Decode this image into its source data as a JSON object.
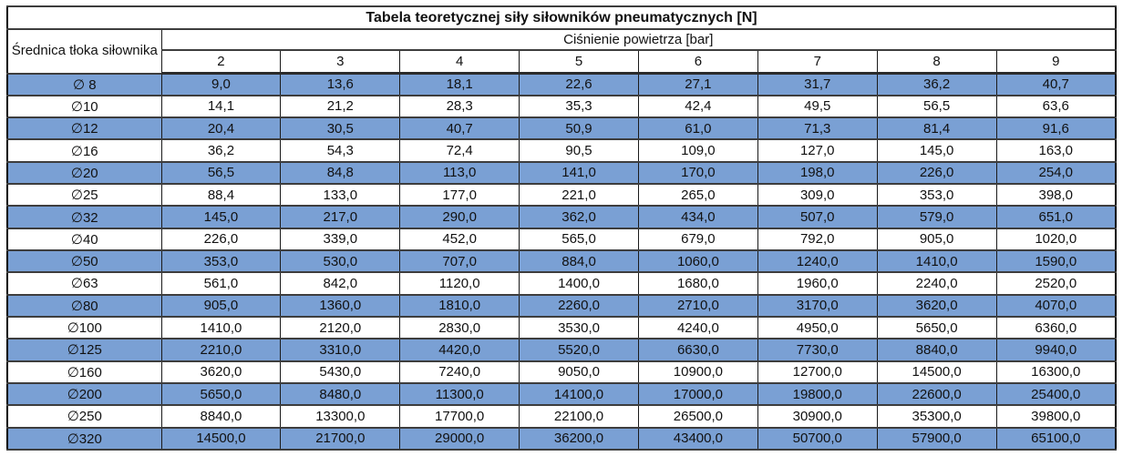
{
  "title": "Tabela teoretycznej siły siłowników pneumatycznych [N]",
  "colors": {
    "stripe_blue": "#7aa0d4",
    "row_white": "#ffffff",
    "border_outer": "#000000",
    "text": "#111111"
  },
  "chart_data": {
    "type": "table",
    "title": "Tabela teoretycznej siły siłowników pneumatycznych [N]",
    "row_header": "Średnica tłoka siłownika",
    "column_group_header": "Ciśnienie powietrza [bar]",
    "columns": [
      "2",
      "3",
      "4",
      "5",
      "6",
      "7",
      "8",
      "9"
    ],
    "rows": [
      {
        "label": "∅ 8",
        "values": [
          "9,0",
          "13,6",
          "18,1",
          "22,6",
          "27,1",
          "31,7",
          "36,2",
          "40,7"
        ]
      },
      {
        "label": "∅10",
        "values": [
          "14,1",
          "21,2",
          "28,3",
          "35,3",
          "42,4",
          "49,5",
          "56,5",
          "63,6"
        ]
      },
      {
        "label": "∅12",
        "values": [
          "20,4",
          "30,5",
          "40,7",
          "50,9",
          "61,0",
          "71,3",
          "81,4",
          "91,6"
        ]
      },
      {
        "label": "∅16",
        "values": [
          "36,2",
          "54,3",
          "72,4",
          "90,5",
          "109,0",
          "127,0",
          "145,0",
          "163,0"
        ]
      },
      {
        "label": "∅20",
        "values": [
          "56,5",
          "84,8",
          "113,0",
          "141,0",
          "170,0",
          "198,0",
          "226,0",
          "254,0"
        ]
      },
      {
        "label": "∅25",
        "values": [
          "88,4",
          "133,0",
          "177,0",
          "221,0",
          "265,0",
          "309,0",
          "353,0",
          "398,0"
        ]
      },
      {
        "label": "∅32",
        "values": [
          "145,0",
          "217,0",
          "290,0",
          "362,0",
          "434,0",
          "507,0",
          "579,0",
          "651,0"
        ]
      },
      {
        "label": "∅40",
        "values": [
          "226,0",
          "339,0",
          "452,0",
          "565,0",
          "679,0",
          "792,0",
          "905,0",
          "1020,0"
        ]
      },
      {
        "label": "∅50",
        "values": [
          "353,0",
          "530,0",
          "707,0",
          "884,0",
          "1060,0",
          "1240,0",
          "1410,0",
          "1590,0"
        ]
      },
      {
        "label": "∅63",
        "values": [
          "561,0",
          "842,0",
          "1120,0",
          "1400,0",
          "1680,0",
          "1960,0",
          "2240,0",
          "2520,0"
        ]
      },
      {
        "label": "∅80",
        "values": [
          "905,0",
          "1360,0",
          "1810,0",
          "2260,0",
          "2710,0",
          "3170,0",
          "3620,0",
          "4070,0"
        ]
      },
      {
        "label": "∅100",
        "values": [
          "1410,0",
          "2120,0",
          "2830,0",
          "3530,0",
          "4240,0",
          "4950,0",
          "5650,0",
          "6360,0"
        ]
      },
      {
        "label": "∅125",
        "values": [
          "2210,0",
          "3310,0",
          "4420,0",
          "5520,0",
          "6630,0",
          "7730,0",
          "8840,0",
          "9940,0"
        ]
      },
      {
        "label": "∅160",
        "values": [
          "3620,0",
          "5430,0",
          "7240,0",
          "9050,0",
          "10900,0",
          "12700,0",
          "14500,0",
          "16300,0"
        ]
      },
      {
        "label": "∅200",
        "values": [
          "5650,0",
          "8480,0",
          "11300,0",
          "14100,0",
          "17000,0",
          "19800,0",
          "22600,0",
          "25400,0"
        ]
      },
      {
        "label": "∅250",
        "values": [
          "8840,0",
          "13300,0",
          "17700,0",
          "22100,0",
          "26500,0",
          "30900,0",
          "35300,0",
          "39800,0"
        ]
      },
      {
        "label": "∅320",
        "values": [
          "14500,0",
          "21700,0",
          "29000,0",
          "36200,0",
          "43400,0",
          "50700,0",
          "57900,0",
          "65100,0"
        ]
      }
    ]
  }
}
